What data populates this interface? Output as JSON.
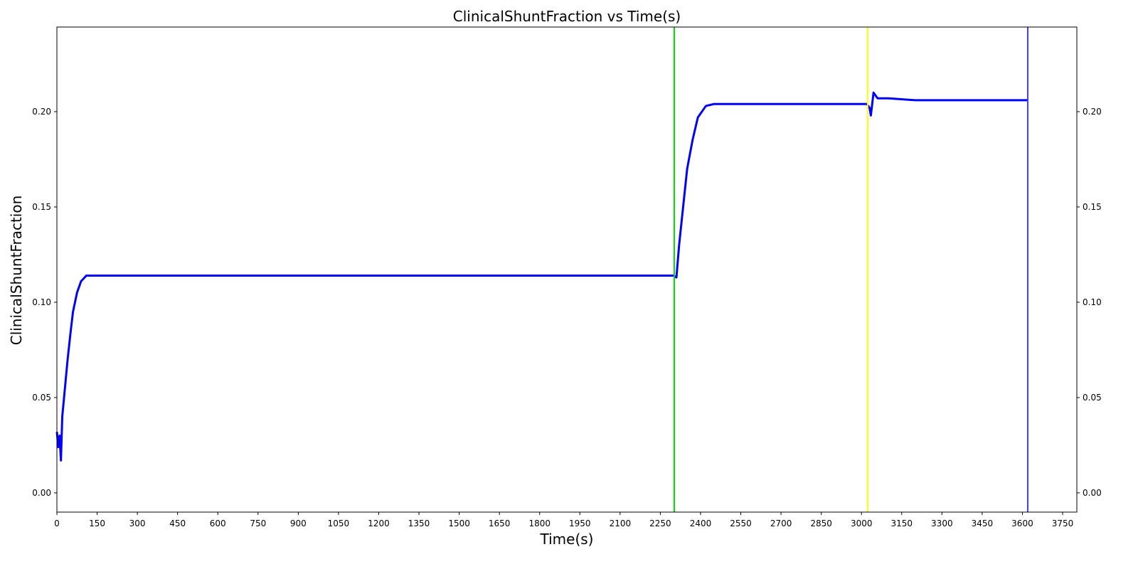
{
  "chart_data": {
    "type": "line",
    "title": "ClinicalShuntFraction vs Time(s)",
    "x_label": "Time(s)",
    "y_label": "ClinicalShuntFraction",
    "x": [
      0,
      5,
      10,
      15,
      20,
      30,
      40,
      50,
      60,
      75,
      90,
      110,
      150,
      2300,
      2310,
      2320,
      2335,
      2350,
      2370,
      2390,
      2420,
      2450,
      3020,
      3030,
      3035,
      3045,
      3060,
      3100,
      3200,
      3620
    ],
    "series": [
      {
        "name": "ClinicalShuntFraction",
        "color": "#0000ff",
        "values": [
          0.032,
          0.024,
          0.03,
          0.017,
          0.04,
          0.055,
          0.07,
          0.083,
          0.095,
          0.105,
          0.111,
          0.114,
          0.114,
          0.114,
          0.113,
          0.13,
          0.15,
          0.17,
          0.185,
          0.197,
          0.203,
          0.204,
          0.204,
          0.202,
          0.198,
          0.21,
          0.207,
          0.207,
          0.206,
          0.206
        ]
      }
    ],
    "vlines": [
      {
        "x": 2302,
        "color": "#00dd00"
      },
      {
        "x": 3023,
        "color": "#ffff00"
      },
      {
        "x": 3620,
        "color": "#4040ff"
      }
    ],
    "xlim": [
      0,
      3803
    ],
    "ylim": [
      -0.0101,
      0.2444
    ],
    "xticks": [
      0,
      150,
      300,
      450,
      600,
      750,
      900,
      1050,
      1200,
      1350,
      1500,
      1650,
      1800,
      1950,
      2100,
      2250,
      2400,
      2550,
      2700,
      2850,
      3000,
      3150,
      3300,
      3450,
      3600,
      3750
    ],
    "yticks": [
      {
        "value": 0,
        "label": "0.00"
      },
      {
        "value": 0.05,
        "label": "0.05"
      },
      {
        "value": 0.1,
        "label": "0.10"
      },
      {
        "value": 0.15,
        "label": "0.15"
      },
      {
        "value": 0.2,
        "label": "0.20"
      }
    ]
  }
}
